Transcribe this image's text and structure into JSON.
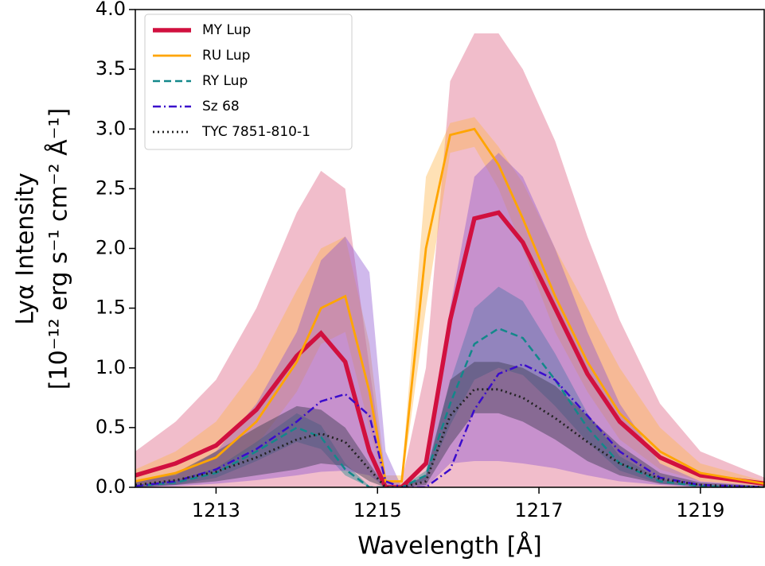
{
  "chart_data": {
    "type": "line",
    "xlabel": "Wavelength [Å]",
    "ylabel": [
      "Lyα Intensity",
      "[10⁻¹² erg s⁻¹ cm⁻² Å⁻¹]"
    ],
    "xlim": [
      1212,
      1219.8
    ],
    "ylim": [
      0,
      4
    ],
    "xticks": [
      1213,
      1215,
      1217,
      1219
    ],
    "yticks": [
      {
        "value": 0,
        "label": "0.0"
      },
      {
        "value": 0.5,
        "label": "0.5"
      },
      {
        "value": 1,
        "label": "1.0"
      },
      {
        "value": 1.5,
        "label": "1.5"
      },
      {
        "value": 2,
        "label": "2.0"
      },
      {
        "value": 2.5,
        "label": "2.5"
      },
      {
        "value": 3,
        "label": "3.0"
      },
      {
        "value": 3.5,
        "label": "3.5"
      },
      {
        "value": 4,
        "label": "4.0"
      }
    ],
    "legend": "upper left",
    "x": [
      1212,
      1212.5,
      1213,
      1213.5,
      1214,
      1214.3,
      1214.6,
      1214.9,
      1215.1,
      1215.3,
      1215.6,
      1215.9,
      1216.2,
      1216.5,
      1216.8,
      1217.2,
      1217.6,
      1218,
      1218.5,
      1219,
      1219.8
    ],
    "series": [
      {
        "name": "MY Lup",
        "color": "#d1103f",
        "style": "solid",
        "band_color": "#dc5a7c",
        "values": [
          0.1,
          0.2,
          0.35,
          0.65,
          1.1,
          1.29,
          1.05,
          0.3,
          0,
          0,
          0.2,
          1.4,
          2.25,
          2.3,
          2.05,
          1.5,
          0.95,
          0.55,
          0.25,
          0.1,
          0.03
        ],
        "upper": [
          0.3,
          0.55,
          0.9,
          1.5,
          2.3,
          2.65,
          2.5,
          1.0,
          0.05,
          0.05,
          1.0,
          3.4,
          3.8,
          3.8,
          3.5,
          2.9,
          2.1,
          1.4,
          0.7,
          0.3,
          0.08
        ],
        "lower": [
          0,
          0,
          0,
          0,
          0,
          0,
          0,
          0,
          0,
          0,
          0,
          0,
          0,
          0,
          0,
          0,
          0,
          0,
          0,
          0,
          0
        ]
      },
      {
        "name": "RU Lup",
        "color": "#ffa500",
        "style": "solid",
        "band_color": "#ffb347",
        "values": [
          0.05,
          0.12,
          0.25,
          0.55,
          1.05,
          1.5,
          1.6,
          0.8,
          0.05,
          0.05,
          2.0,
          2.95,
          3.0,
          2.7,
          2.25,
          1.6,
          1.05,
          0.62,
          0.3,
          0.12,
          0.03
        ],
        "upper": [
          0.15,
          0.3,
          0.55,
          1.0,
          1.65,
          2.0,
          2.1,
          1.2,
          0.1,
          0.1,
          2.6,
          3.05,
          3.1,
          2.85,
          2.55,
          2.0,
          1.5,
          1.0,
          0.5,
          0.2,
          0.05
        ],
        "lower": [
          0,
          0.05,
          0.15,
          0.35,
          0.8,
          1.2,
          1.3,
          0.5,
          0,
          0,
          1.5,
          2.8,
          2.85,
          2.5,
          2.0,
          1.3,
          0.8,
          0.4,
          0.15,
          0.05,
          0.01
        ]
      },
      {
        "name": "RY Lup",
        "color": "#13888a",
        "style": "dashed",
        "band_color": "#13888a",
        "values": [
          0.01,
          0.04,
          0.12,
          0.3,
          0.5,
          0.42,
          0.15,
          0,
          0,
          0,
          0.1,
          0.7,
          1.2,
          1.33,
          1.25,
          0.9,
          0.5,
          0.2,
          0.05,
          0.01,
          0
        ],
        "upper": [
          0.02,
          0.06,
          0.16,
          0.38,
          0.62,
          0.52,
          0.2,
          0.01,
          0,
          0,
          0.14,
          0.88,
          1.5,
          1.68,
          1.56,
          1.12,
          0.62,
          0.26,
          0.07,
          0.02,
          0
        ],
        "lower": [
          0,
          0.02,
          0.08,
          0.22,
          0.38,
          0.32,
          0.1,
          0,
          0,
          0,
          0.06,
          0.52,
          0.9,
          1.0,
          0.94,
          0.68,
          0.38,
          0.14,
          0.03,
          0,
          0
        ]
      },
      {
        "name": "Sz 68",
        "color": "#3a0ccc",
        "style": "dashdot",
        "band_color": "#8a4fd0",
        "values": [
          0.01,
          0.05,
          0.15,
          0.32,
          0.55,
          0.72,
          0.78,
          0.6,
          0.05,
          0,
          0,
          0.15,
          0.65,
          0.95,
          1.03,
          0.9,
          0.6,
          0.3,
          0.08,
          0.02,
          0
        ],
        "upper": [
          0.05,
          0.1,
          0.3,
          0.7,
          1.3,
          1.9,
          2.1,
          1.8,
          0.3,
          0,
          0.1,
          1.5,
          2.6,
          2.8,
          2.6,
          2.0,
          1.3,
          0.7,
          0.2,
          0.05,
          0.01
        ],
        "lower": [
          0,
          0.01,
          0.03,
          0.06,
          0.1,
          0.13,
          0.14,
          0.1,
          0,
          0,
          0,
          0.2,
          0.22,
          0.22,
          0.2,
          0.16,
          0.1,
          0.05,
          0.02,
          0,
          0
        ]
      },
      {
        "name": "TYC 7851-810-1",
        "color": "#222222",
        "style": "dotted",
        "band_color": "#3c3c50",
        "values": [
          0.02,
          0.06,
          0.13,
          0.25,
          0.4,
          0.45,
          0.38,
          0.15,
          0,
          0,
          0.05,
          0.6,
          0.82,
          0.82,
          0.75,
          0.58,
          0.38,
          0.2,
          0.07,
          0.02,
          0
        ],
        "upper": [
          0.05,
          0.12,
          0.3,
          0.5,
          0.68,
          0.65,
          0.5,
          0.2,
          0,
          0,
          0.1,
          0.9,
          1.05,
          1.05,
          1.0,
          0.85,
          0.6,
          0.35,
          0.12,
          0.04,
          0.01
        ],
        "lower": [
          0,
          0.02,
          0.05,
          0.1,
          0.15,
          0.2,
          0.18,
          0.05,
          0,
          0,
          0.02,
          0.35,
          0.62,
          0.62,
          0.55,
          0.4,
          0.22,
          0.1,
          0.03,
          0.01,
          0
        ]
      }
    ]
  }
}
